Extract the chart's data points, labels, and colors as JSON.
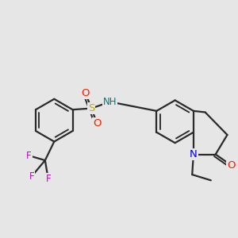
{
  "bg_color": "#e6e6e6",
  "bond_color": "#2a2a2a",
  "bond_width": 1.6,
  "atom_colors": {
    "C": "#2a2a2a",
    "N": "#0000ee",
    "O": "#ee2200",
    "S": "#ccaa00",
    "F": "#cc00cc",
    "H": "#007777"
  },
  "font_size": 8.5
}
